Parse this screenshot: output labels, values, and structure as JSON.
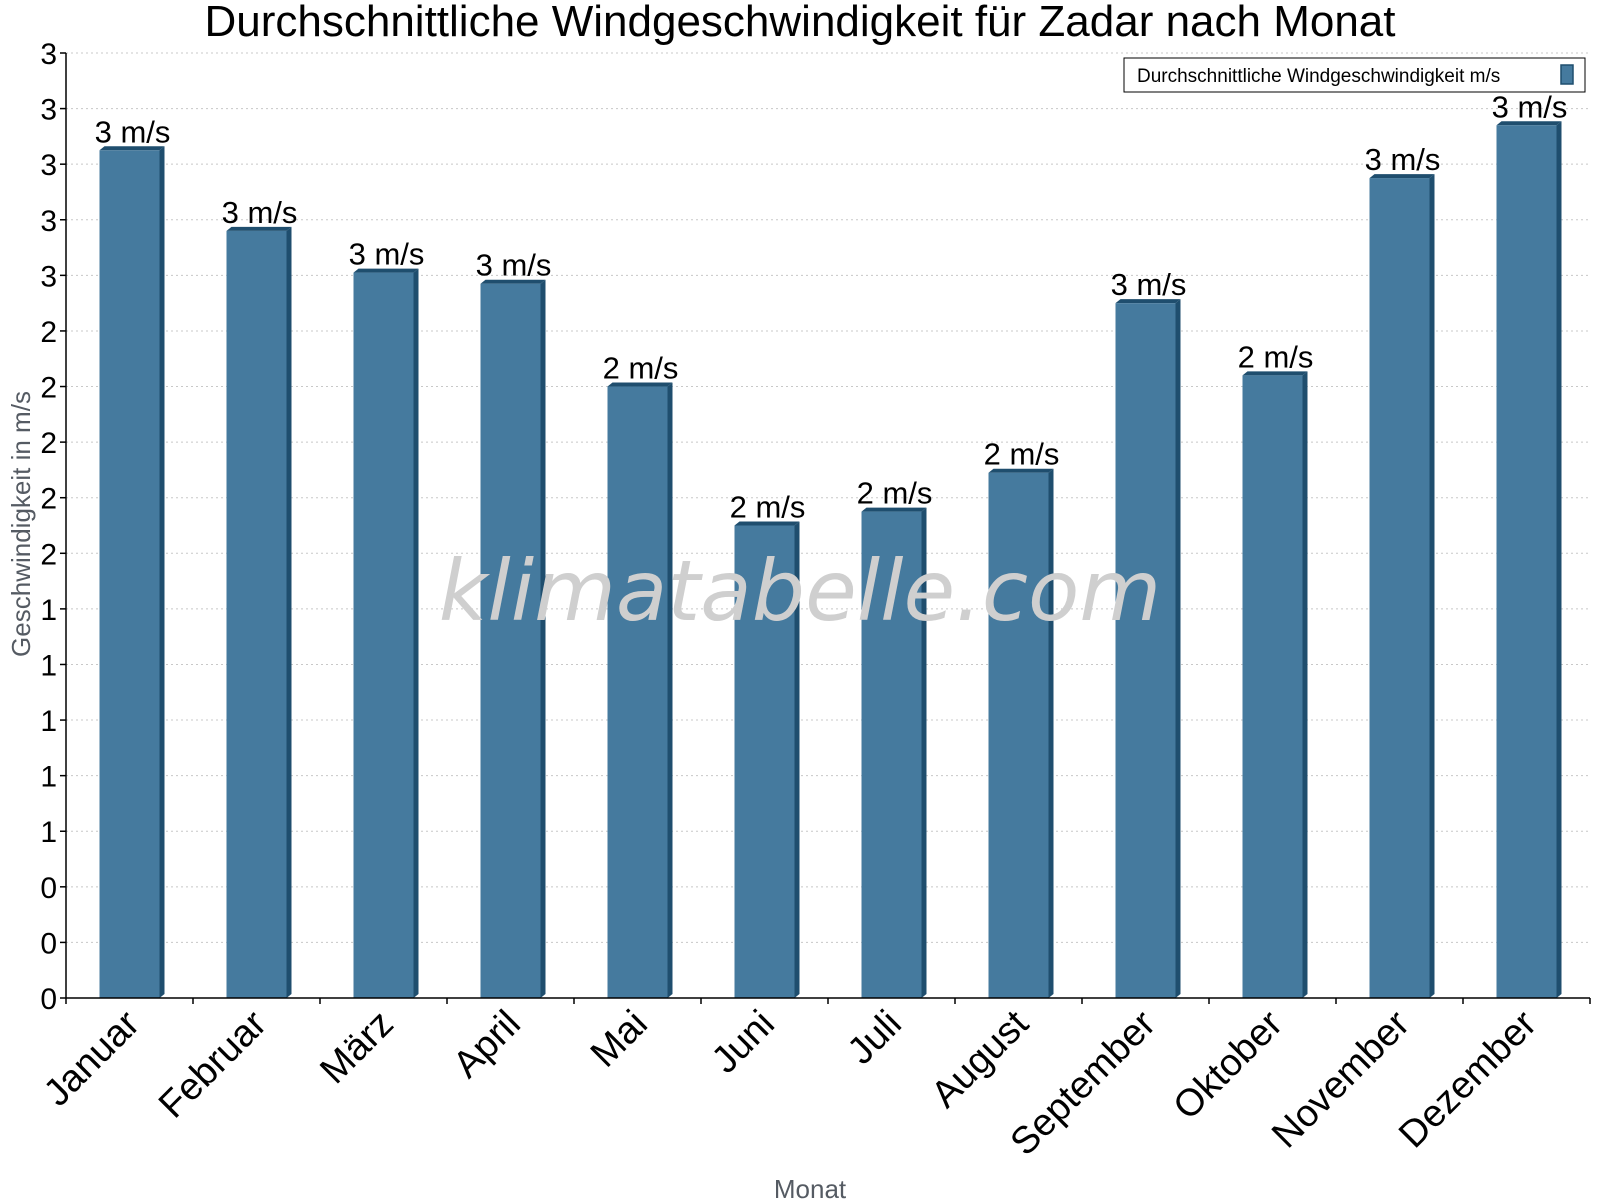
{
  "chart_data": {
    "type": "bar",
    "title": "Durchschnittliche Windgeschwindigkeit für Zadar nach Monat",
    "xlabel": "Monat",
    "ylabel": "Geschwindigkeit in m/s",
    "categories": [
      "Januar",
      "Februar",
      "März",
      "April",
      "Mai",
      "Juni",
      "Juli",
      "August",
      "September",
      "Oktober",
      "November",
      "Dezember"
    ],
    "series": [
      {
        "name": "Durchschnittliche Windgeschwindigkeit m/s",
        "values": [
          3.05,
          2.76,
          2.61,
          2.57,
          2.2,
          1.7,
          1.75,
          1.89,
          2.5,
          2.24,
          2.95,
          3.14
        ],
        "data_labels": [
          "3 m/s",
          "3 m/s",
          "3 m/s",
          "3 m/s",
          "2 m/s",
          "2 m/s",
          "2 m/s",
          "2 m/s",
          "3 m/s",
          "2 m/s",
          "3 m/s",
          "3 m/s"
        ],
        "color": "#457a9e"
      }
    ],
    "ylim": [
      0,
      3.4
    ],
    "yticks": [
      0,
      0.2,
      0.4,
      0.6,
      0.8,
      1.0,
      1.2,
      1.4,
      1.6,
      1.8,
      2.0,
      2.2,
      2.4,
      2.6,
      2.8,
      3.0,
      3.2,
      3.4
    ],
    "ytick_labels": [
      "0",
      "0",
      "0",
      "1",
      "1",
      "1",
      "1",
      "1",
      "2",
      "2",
      "2",
      "2",
      "2",
      "3",
      "3",
      "3",
      "3",
      "3"
    ],
    "grid": true,
    "legend_position": "top-right",
    "watermark": "klimatabelle.com"
  }
}
